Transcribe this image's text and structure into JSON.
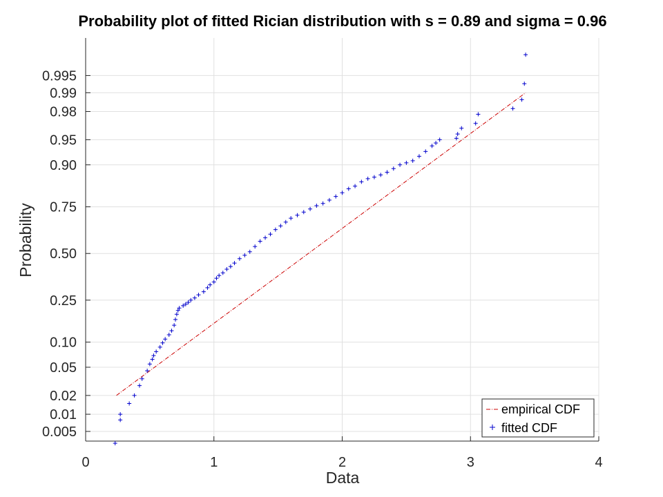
{
  "chart_data": {
    "type": "scatter",
    "title": "Probability plot of fitted Rician distribution with s = 0.89 and sigma = 0.96",
    "xlabel": "Data",
    "ylabel": "Probability",
    "xlim": [
      0,
      4
    ],
    "x_ticks": [
      "0",
      "1",
      "2",
      "3",
      "4"
    ],
    "x_tick_values": [
      0,
      1,
      2,
      3,
      4
    ],
    "y_ticks": [
      "0.005",
      "0.01",
      "0.02",
      "0.05",
      "0.10",
      "0.25",
      "0.50",
      "0.75",
      "0.90",
      "0.95",
      "0.98",
      "0.99",
      "0.995"
    ],
    "y_tick_values": [
      0.005,
      0.01,
      0.02,
      0.05,
      0.1,
      0.25,
      0.5,
      0.75,
      0.9,
      0.95,
      0.98,
      0.99,
      0.995
    ],
    "y_scale": "probability",
    "grid": true,
    "legend_position": "bottom-right",
    "colors": {
      "empirical": "#cc0000",
      "fitted": "#0000cc",
      "grid": "#e0e0e0",
      "axis": "#262626"
    },
    "series": [
      {
        "name": "empirical CDF",
        "style": "dash-dot line",
        "x": [
          0.24,
          3.43
        ],
        "y": [
          0.02,
          0.99
        ]
      },
      {
        "name": "fitted CDF",
        "style": "plus markers",
        "x": [
          0.23,
          0.27,
          0.27,
          0.34,
          0.38,
          0.42,
          0.44,
          0.48,
          0.5,
          0.52,
          0.53,
          0.55,
          0.58,
          0.6,
          0.62,
          0.65,
          0.67,
          0.69,
          0.7,
          0.71,
          0.72,
          0.73,
          0.76,
          0.78,
          0.8,
          0.82,
          0.85,
          0.88,
          0.92,
          0.95,
          0.97,
          1.0,
          1.02,
          1.04,
          1.07,
          1.1,
          1.13,
          1.16,
          1.2,
          1.24,
          1.28,
          1.32,
          1.36,
          1.4,
          1.44,
          1.48,
          1.52,
          1.56,
          1.6,
          1.65,
          1.7,
          1.75,
          1.8,
          1.85,
          1.9,
          1.95,
          2.0,
          2.05,
          2.1,
          2.15,
          2.2,
          2.25,
          2.3,
          2.35,
          2.4,
          2.45,
          2.5,
          2.55,
          2.6,
          2.65,
          2.7,
          2.73,
          2.76,
          2.89,
          2.9,
          2.93,
          3.04,
          3.06,
          3.33,
          3.4,
          3.42,
          3.43
        ],
        "y": [
          0.003,
          0.008,
          0.01,
          0.015,
          0.02,
          0.028,
          0.035,
          0.045,
          0.055,
          0.063,
          0.07,
          0.078,
          0.088,
          0.098,
          0.108,
          0.12,
          0.132,
          0.15,
          0.17,
          0.19,
          0.205,
          0.215,
          0.225,
          0.232,
          0.24,
          0.25,
          0.26,
          0.275,
          0.29,
          0.31,
          0.325,
          0.34,
          0.36,
          0.375,
          0.39,
          0.41,
          0.425,
          0.445,
          0.47,
          0.49,
          0.51,
          0.54,
          0.57,
          0.59,
          0.61,
          0.635,
          0.655,
          0.675,
          0.695,
          0.71,
          0.725,
          0.74,
          0.755,
          0.765,
          0.78,
          0.795,
          0.81,
          0.825,
          0.835,
          0.85,
          0.86,
          0.865,
          0.872,
          0.88,
          0.89,
          0.9,
          0.905,
          0.91,
          0.92,
          0.93,
          0.94,
          0.945,
          0.95,
          0.952,
          0.958,
          0.965,
          0.97,
          0.978,
          0.982,
          0.987,
          0.993,
          0.998
        ]
      }
    ]
  }
}
